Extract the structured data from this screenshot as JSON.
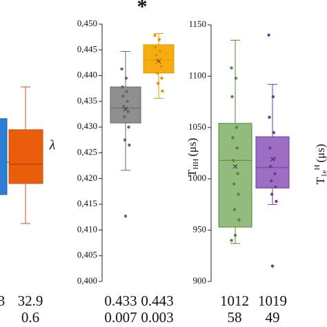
{
  "panel_1": {
    "stats": [
      [
        "3",
        "32.9"
      ],
      [
        "0.6"
      ]
    ]
  },
  "chart_data": [
    {
      "type": "box",
      "ylabel": "λ",
      "annotation": "*",
      "ylim": [
        0.4,
        0.45
      ],
      "yticks": [
        {
          "value": 0.4,
          "label": "0,400"
        },
        {
          "value": 0.405,
          "label": "0,405"
        },
        {
          "value": 0.41,
          "label": "0,410"
        },
        {
          "value": 0.415,
          "label": "0,415"
        },
        {
          "value": 0.42,
          "label": "0,420"
        },
        {
          "value": 0.425,
          "label": "0,425"
        },
        {
          "value": 0.43,
          "label": "0,430"
        },
        {
          "value": 0.435,
          "label": "0,435"
        },
        {
          "value": 0.44,
          "label": "0,440"
        },
        {
          "value": 0.445,
          "label": "0,445"
        },
        {
          "value": 0.45,
          "label": "0,450"
        }
      ],
      "boxes": [
        {
          "color": "#8f8f8f",
          "stroke": "#666666",
          "min": 0.4216,
          "q1": 0.4308,
          "median": 0.4337,
          "q3": 0.4378,
          "max": 0.4447,
          "mean": 0.4335,
          "points": [
            0.4413,
            0.4395,
            0.4378,
            0.4369,
            0.436,
            0.435,
            0.434,
            0.433,
            0.432,
            0.43,
            0.4275,
            0.4265,
            0.4127
          ]
        },
        {
          "color": "#f7ad12",
          "stroke": "#e09600",
          "min": 0.4356,
          "q1": 0.4405,
          "median": 0.443,
          "q3": 0.446,
          "max": 0.4482,
          "mean": 0.4428,
          "points": [
            0.4478,
            0.447,
            0.4455,
            0.4448,
            0.444,
            0.4432,
            0.4425,
            0.4418,
            0.4405,
            0.4395,
            0.4385,
            0.437
          ]
        }
      ],
      "stats": [
        [
          "0.433",
          "0.443"
        ],
        [
          "0.007",
          "0.003"
        ]
      ]
    },
    {
      "type": "box",
      "ylabel": {
        "main": "T",
        "sub": "HH",
        "unit": "(μs)"
      },
      "ylabel_right": {
        "main": "T",
        "sub": "1e",
        "sup": "H",
        "unit": "(μs)"
      },
      "ylim": [
        900,
        1150
      ],
      "yticks": [
        900,
        950,
        1000,
        1050,
        1100,
        1150
      ],
      "boxes": [
        {
          "color": "#93bb7e",
          "stroke": "#4f8a35",
          "min": 937,
          "q1": 953,
          "median": 1018,
          "q3": 1054,
          "max": 1135,
          "mean": 1012,
          "points": [
            1108,
            1098,
            1080,
            1050,
            1040,
            1030,
            1018,
            1005,
            995,
            985,
            970,
            960,
            945,
            940
          ]
        },
        {
          "color": "#9d6fc4",
          "stroke": "#6d3a9c",
          "min": 975,
          "q1": 991,
          "median": 1011,
          "q3": 1041,
          "max": 1092,
          "mean": 1019,
          "points": [
            1140,
            1080,
            1060,
            1045,
            1030,
            1020,
            1012,
            1005,
            998,
            992,
            985,
            978,
            915
          ]
        }
      ],
      "stats": [
        [
          "1012",
          "1019"
        ],
        [
          "58",
          "49"
        ]
      ]
    }
  ]
}
